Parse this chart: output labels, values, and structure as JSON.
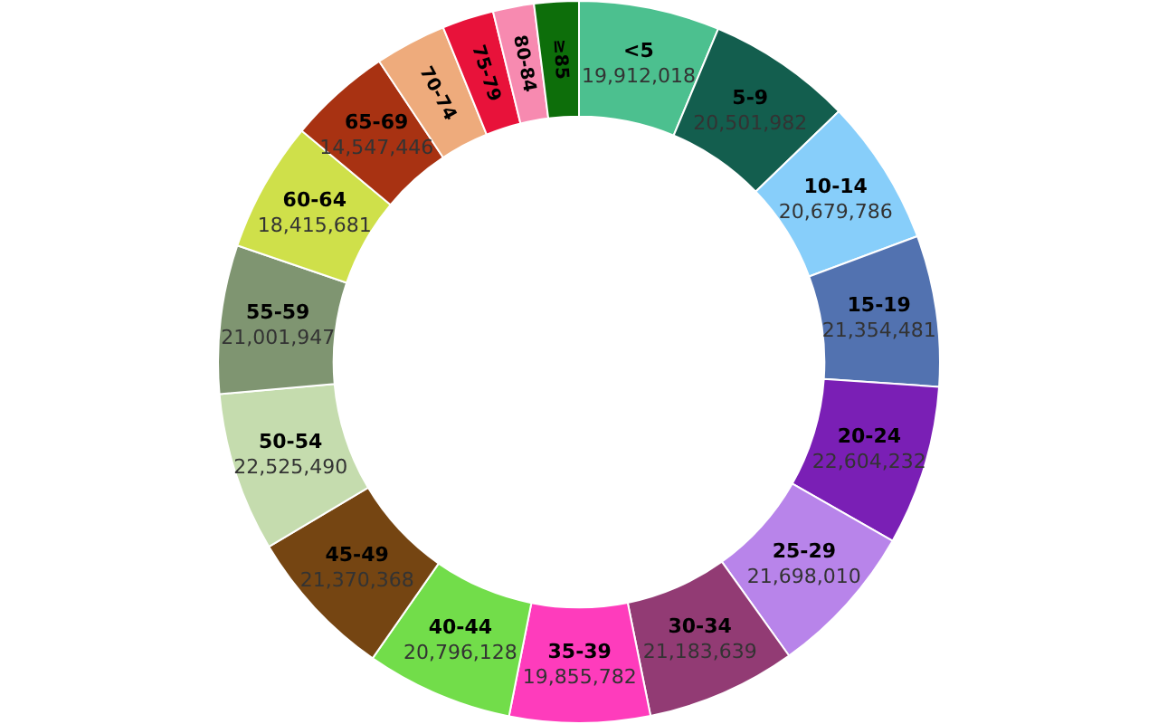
{
  "chart_data": {
    "type": "donut",
    "categories": [
      "<5",
      "5-9",
      "10-14",
      "15-19",
      "20-24",
      "25-29",
      "30-34",
      "35-39",
      "40-44",
      "45-49",
      "50-54",
      "55-59",
      "60-64",
      "65-69",
      "70-74",
      "75-79",
      "80-84",
      "≥85"
    ],
    "values": [
      19912018,
      20501982,
      20679786,
      21354481,
      22604232,
      21698010,
      21183639,
      19855782,
      20796128,
      21370368,
      22525490,
      21001947,
      18415681,
      14547446,
      10100000,
      7300000,
      5800000,
      6300000
    ],
    "value_labels": [
      "19,912,018",
      "20,501,982",
      "20,679,786",
      "21,354,481",
      "22,604,232",
      "21,698,010",
      "21,183,639",
      "19,855,782",
      "20,796,128",
      "21,370,368",
      "22,525,490",
      "21,001,947",
      "18,415,681",
      "14,547,446",
      null,
      null,
      null,
      null
    ],
    "colors": [
      "#4cc08f",
      "#135e4e",
      "#87cefa",
      "#5272b0",
      "#7a1fb5",
      "#b884ea",
      "#923b74",
      "#fe3cbc",
      "#72dd4a",
      "#754512",
      "#c5dcae",
      "#7f9571",
      "#cfe04a",
      "#a83212",
      "#eeab7c",
      "#e8123a",
      "#f78ab0",
      "#0d6e0a"
    ],
    "legend": false
  }
}
